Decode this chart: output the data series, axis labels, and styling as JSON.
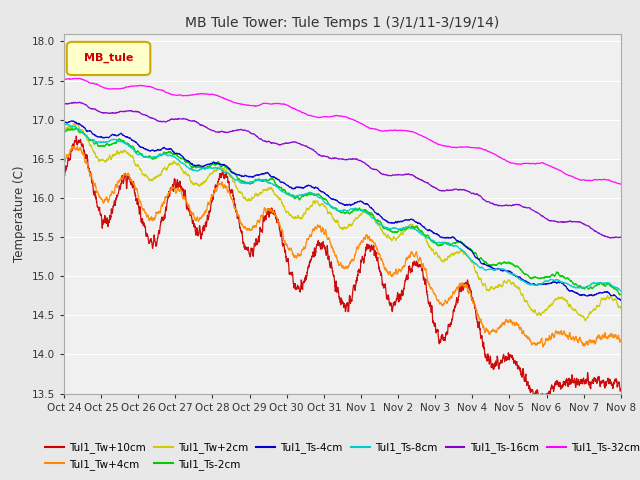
{
  "title": "MB Tule Tower: Tule Temps 1 (3/1/11-3/19/14)",
  "ylabel": "Temperature (C)",
  "ylim": [
    13.5,
    18.1
  ],
  "xlim": [
    0,
    15
  ],
  "background_color": "#e8e8e8",
  "plot_bg": "#f0f0f0",
  "grid_color": "white",
  "xtick_labels": [
    "Oct 24",
    "Oct 25",
    "Oct 26",
    "Oct 27",
    "Oct 28",
    "Oct 29",
    "Oct 30",
    "Oct 31",
    "Nov 1",
    "Nov 2",
    "Nov 3",
    "Nov 4",
    "Nov 5",
    "Nov 6",
    "Nov 7",
    "Nov 8"
  ],
  "ytick_labels": [
    "13.5",
    "14.0",
    "14.5",
    "15.0",
    "15.5",
    "16.0",
    "16.5",
    "17.0",
    "17.5",
    "18.0"
  ],
  "ytick_vals": [
    13.5,
    14.0,
    14.5,
    15.0,
    15.5,
    16.0,
    16.5,
    17.0,
    17.5,
    18.0
  ],
  "legend_label": "MB_tule",
  "series": [
    {
      "name": "Tul1_Tw+10cm",
      "color": "#cc0000"
    },
    {
      "name": "Tul1_Tw+4cm",
      "color": "#ff8800"
    },
    {
      "name": "Tul1_Tw+2cm",
      "color": "#cccc00"
    },
    {
      "name": "Tul1_Ts-2cm",
      "color": "#00cc00"
    },
    {
      "name": "Tul1_Ts-4cm",
      "color": "#0000cc"
    },
    {
      "name": "Tul1_Ts-8cm",
      "color": "#00cccc"
    },
    {
      "name": "Tul1_Ts-16cm",
      "color": "#8800cc"
    },
    {
      "name": "Tul1_Ts-32cm",
      "color": "#ff00ff"
    }
  ]
}
